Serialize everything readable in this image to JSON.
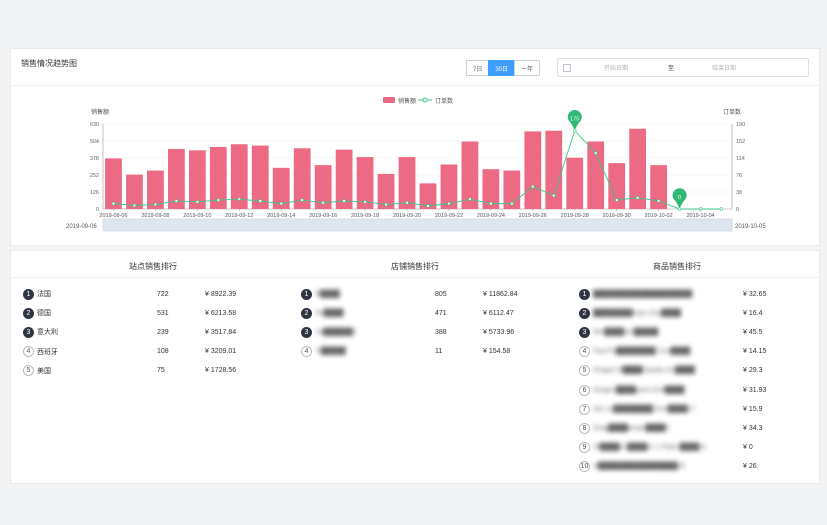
{
  "trend": {
    "title": "销售情况趋势图",
    "range_buttons": [
      "7日",
      "30日",
      "一年"
    ],
    "active_range": 1,
    "date_start_placeholder": "开始日期",
    "date_separator": "至",
    "date_end_placeholder": "结束日期"
  },
  "chart_data": {
    "type": "bar",
    "legend": [
      "销售额",
      "订单数"
    ],
    "ylabel_left": "销售额",
    "ylabel_right": "订单数",
    "y_left_ticks": [
      0,
      126,
      252,
      378,
      504,
      630
    ],
    "y_right_ticks": [
      0,
      38,
      76,
      114,
      152,
      190
    ],
    "ylim_left": [
      0,
      630
    ],
    "ylim_right": [
      0,
      190
    ],
    "x_tick_labels": [
      "2019-09-06",
      "2019-09-08",
      "2019-09-10",
      "2019-09-12",
      "2019-09-14",
      "2019-09-16",
      "2019-09-18",
      "2019-09-20",
      "2019-09-22",
      "2019-09-24",
      "2019-09-26",
      "2019-09-28",
      "2019-09-30",
      "2019-10-02",
      "2019-10-04"
    ],
    "categories": [
      "2019-09-06",
      "2019-09-07",
      "2019-09-08",
      "2019-09-09",
      "2019-09-10",
      "2019-09-11",
      "2019-09-12",
      "2019-09-13",
      "2019-09-14",
      "2019-09-15",
      "2019-09-16",
      "2019-09-17",
      "2019-09-18",
      "2019-09-19",
      "2019-09-20",
      "2019-09-21",
      "2019-09-22",
      "2019-09-23",
      "2019-09-24",
      "2019-09-25",
      "2019-09-26",
      "2019-09-27",
      "2019-09-28",
      "2019-09-29",
      "2019-09-30",
      "2019-10-01",
      "2019-10-02",
      "2019-10-03",
      "2019-10-04",
      "2019-10-05"
    ],
    "series": [
      {
        "name": "销售额",
        "axis": "left",
        "kind": "bar",
        "color": "#ec6a83",
        "values": [
          375,
          255,
          285,
          445,
          435,
          460,
          480,
          470,
          305,
          450,
          325,
          440,
          385,
          260,
          385,
          190,
          330,
          500,
          295,
          285,
          575,
          580,
          380,
          500,
          340,
          595,
          325,
          0,
          0,
          0
        ]
      },
      {
        "name": "订单数",
        "axis": "right",
        "kind": "line",
        "color": "#3cc48a",
        "values": [
          12,
          8,
          10,
          18,
          16,
          20,
          22,
          18,
          12,
          20,
          14,
          18,
          16,
          10,
          14,
          7,
          12,
          22,
          12,
          12,
          50,
          30,
          175,
          125,
          20,
          25,
          18,
          0,
          0,
          0
        ]
      }
    ],
    "markers": [
      {
        "index": 22,
        "label": "175"
      },
      {
        "index": 27,
        "label": "0"
      }
    ],
    "slider_start_label": "2019-09-06",
    "slider_end_label": "2019-10-05"
  },
  "ranks": {
    "sites": {
      "title": "站点销售排行",
      "rows": [
        {
          "rank": "1",
          "name": "法国",
          "count": "722",
          "amount": "¥ 8922.39"
        },
        {
          "rank": "2",
          "name": "德国",
          "count": "531",
          "amount": "¥ 6213.58"
        },
        {
          "rank": "3",
          "name": "意大利",
          "count": "239",
          "amount": "¥ 3517.84"
        },
        {
          "rank": "4",
          "name": "西班牙",
          "count": "108",
          "amount": "¥ 3209.01"
        },
        {
          "rank": "5",
          "name": "美国",
          "count": "75",
          "amount": "¥ 1728.56"
        }
      ]
    },
    "shops": {
      "title": "店铺销售排行",
      "rows": [
        {
          "rank": "1",
          "name": "N████",
          "count": "805",
          "amount": "¥ 11862.84"
        },
        {
          "rank": "2",
          "name": "Sn████",
          "count": "471",
          "amount": "¥ 6112.47"
        },
        {
          "rank": "3",
          "name": "Ya██████1",
          "count": "388",
          "amount": "¥ 5733.96"
        },
        {
          "rank": "4",
          "name": "Yi█████",
          "count": "11",
          "amount": "¥ 154.58"
        }
      ]
    },
    "products": {
      "title": "商品销售排行",
      "rows": [
        {
          "rank": "1",
          "name": "████████████████████",
          "amount": "¥ 32.65"
        },
        {
          "rank": "2",
          "name": "████████mpe Cha████",
          "amount": "¥ 16.4"
        },
        {
          "rank": "3",
          "name": "50c████uit █████",
          "amount": "¥ 45.5"
        },
        {
          "rank": "4",
          "name": "FaceTo████████ Cou████",
          "amount": "¥ 14.15"
        },
        {
          "rank": "5",
          "name": "Dragon B████mpada Go████",
          "amount": "¥ 29.3"
        },
        {
          "rank": "6",
          "name": "Dragon████para Gok████",
          "amount": "¥ 31.93"
        },
        {
          "rank": "7",
          "name": "Die Le████████ Drei████17",
          "amount": "¥ 15.9"
        },
        {
          "rank": "8",
          "name": "Drag████ampe████5",
          "amount": "¥ 34.3"
        },
        {
          "rank": "9",
          "name": "Hi████en████re 1 Paire ████11",
          "amount": "¥ 0"
        },
        {
          "rank": "10",
          "name": "H████████████████30",
          "amount": "¥ 26"
        }
      ]
    }
  }
}
